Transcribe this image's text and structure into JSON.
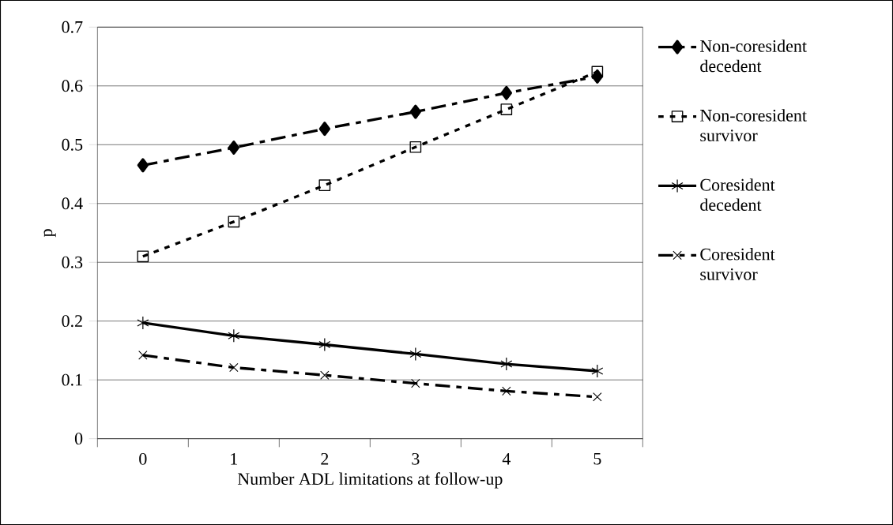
{
  "chart_data": {
    "type": "line",
    "xlabel": "Number ADL limitations at follow-up",
    "ylabel": "p",
    "categories": [
      "0",
      "1",
      "2",
      "3",
      "4",
      "5"
    ],
    "series": [
      {
        "name": "Non-coresident decedent",
        "color": "#000000",
        "marker": "diamond",
        "line_style": "dashed",
        "values": [
          0.465,
          0.495,
          0.527,
          0.556,
          0.588,
          0.616
        ]
      },
      {
        "name": "Non-coresident survivor",
        "color": "#000000",
        "marker": "square",
        "line_style": "dotted",
        "values": [
          0.31,
          0.369,
          0.431,
          0.496,
          0.56,
          0.624
        ]
      },
      {
        "name": "Coresident decedent",
        "color": "#000000",
        "marker": "cross",
        "line_style": "solid",
        "values": [
          0.197,
          0.175,
          0.16,
          0.144,
          0.127,
          0.115
        ]
      },
      {
        "name": "Coresident survivor",
        "color": "#000000",
        "marker": "cross",
        "line_style": "dashed",
        "values": [
          0.142,
          0.121,
          0.108,
          0.094,
          0.081,
          0.071
        ]
      }
    ],
    "ylim": [
      0,
      0.7
    ],
    "yticks": [
      0,
      0.1,
      0.2,
      0.3,
      0.4,
      0.5,
      0.6,
      0.7
    ],
    "grid": "y",
    "legend": "right"
  }
}
